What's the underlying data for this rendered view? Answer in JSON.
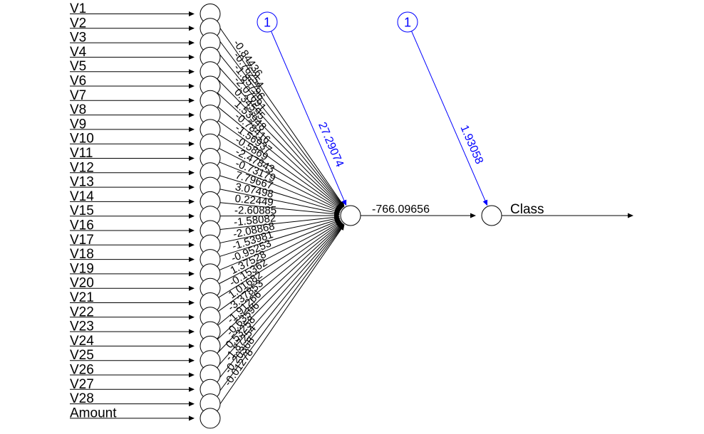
{
  "network": {
    "inputs": [
      "V1",
      "V2",
      "V3",
      "V4",
      "V5",
      "V6",
      "V7",
      "V8",
      "V9",
      "V10",
      "V11",
      "V12",
      "V13",
      "V14",
      "V15",
      "V16",
      "V17",
      "V18",
      "V19",
      "V20",
      "V21",
      "V22",
      "V23",
      "V24",
      "V25",
      "V26",
      "V27",
      "V28",
      "Amount"
    ],
    "input_weights": [
      "-0.84436",
      "-0.76254",
      "-1.85796",
      "-2.07691",
      "0.34595",
      "1.53948",
      "-0.78416",
      "-1.56937",
      "-0.5869",
      "-2.47843",
      "-0.73179",
      "7.79667",
      "3.07498",
      "0.22449",
      "-2.60885",
      "-1.58082",
      "-2.08868",
      "-1.53981",
      "-0.95253",
      "1.37528",
      "-0.15362",
      "1.01682",
      "-3.37853",
      "-1.91266",
      "-0.63596",
      "0.53258",
      "-1.87254",
      "-0.20368",
      "-0.01278"
    ],
    "hidden_bias": {
      "label": "1",
      "weight": "27.29074"
    },
    "hidden_to_output_weight": "-766.09656",
    "output_bias": {
      "label": "1",
      "weight": "1.93058"
    },
    "output_label": "Class"
  },
  "colors": {
    "edge": "#000000",
    "bias": "#0000ff",
    "background": "#ffffff"
  }
}
